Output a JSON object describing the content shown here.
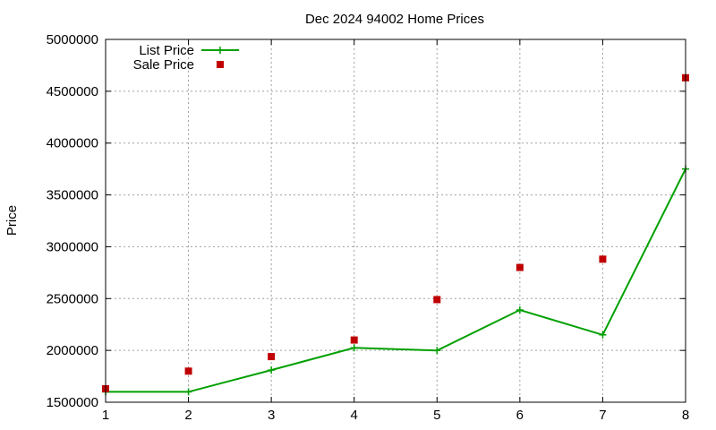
{
  "chart_data": {
    "type": "line",
    "title": "Dec 2024 94002 Home Prices",
    "xlabel": "",
    "ylabel": "Price",
    "x": [
      1,
      2,
      3,
      4,
      5,
      6,
      7,
      8
    ],
    "xlim": [
      1,
      8
    ],
    "ylim": [
      1500000,
      5000000
    ],
    "xticks": [
      "1",
      "2",
      "3",
      "4",
      "5",
      "6",
      "7",
      "8"
    ],
    "yticks": [
      "1500000",
      "2000000",
      "2500000",
      "3000000",
      "3500000",
      "4000000",
      "4500000",
      "5000000"
    ],
    "grid": true,
    "legend_position": "top-left",
    "series": [
      {
        "name": "List Price",
        "kind": "line-with-plus-markers",
        "color": "#00a000",
        "values": [
          1600000,
          1600000,
          1810000,
          2025000,
          1999000,
          2390000,
          2150000,
          3750000
        ]
      },
      {
        "name": "Sale Price",
        "kind": "square-points",
        "color": "#c00000",
        "values": [
          1630000,
          1800000,
          1940000,
          2100000,
          2490000,
          2800000,
          2880000,
          4630000
        ]
      }
    ]
  }
}
